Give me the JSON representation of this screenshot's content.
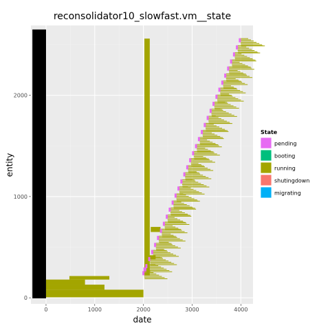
{
  "chart_data": {
    "type": "timeline",
    "title": "reconsolidator10_slowfast.vm__state",
    "xlabel": "date",
    "ylabel": "entity",
    "xlim": [
      -310,
      4250
    ],
    "ylim": [
      -60,
      2690
    ],
    "x_ticks": [
      0,
      1000,
      2000,
      3000,
      4000
    ],
    "y_ticks": [
      0,
      1000,
      2000
    ],
    "x_tick_labels": [
      "0",
      "1000",
      "2000",
      "3000",
      "4000"
    ],
    "y_tick_labels": [
      "0",
      "1000",
      "2000"
    ],
    "grid": true,
    "legend_position": "right",
    "legend": {
      "title": "State",
      "entries": [
        {
          "label": "pending",
          "color": "#E76BF3"
        },
        {
          "label": "booting",
          "color": "#00BF7D"
        },
        {
          "label": "running",
          "color": "#A3A500"
        },
        {
          "label": "shutingdown",
          "color": "#F8766D"
        },
        {
          "label": "migrating",
          "color": "#00B0F6"
        }
      ]
    },
    "series": [
      {
        "name": "black-initial-states",
        "color": "#000000",
        "segments": [
          [
            -280,
            -5,
            0,
            2650
          ]
        ]
      },
      {
        "name": "running-block-lower",
        "color": "#A3A500",
        "segments": [
          [
            0,
            5,
            2000,
            80
          ],
          [
            0,
            80,
            1200,
            130
          ],
          [
            0,
            130,
            800,
            180
          ],
          [
            480,
            180,
            1300,
            215
          ]
        ]
      },
      {
        "name": "running-dense-band",
        "color": "#A3A500",
        "segments": [
          [
            2020,
            220,
            2130,
            2560
          ],
          [
            2080,
            380,
            2250,
            420
          ],
          [
            2150,
            650,
            2350,
            700
          ]
        ]
      },
      {
        "name": "pending-markers",
        "color": "#E76BF3",
        "segments": [
          [
            2000,
            250,
            2060,
            300
          ]
        ]
      }
    ],
    "diagonal_staircase": {
      "start": [
        2000,
        260
      ],
      "end": [
        3980,
        2560
      ],
      "steps": 34,
      "bar_length_range": [
        150,
        550
      ]
    }
  },
  "legend_labels": [
    "pending",
    "booting",
    "running",
    "shutingdown",
    "migrating"
  ]
}
